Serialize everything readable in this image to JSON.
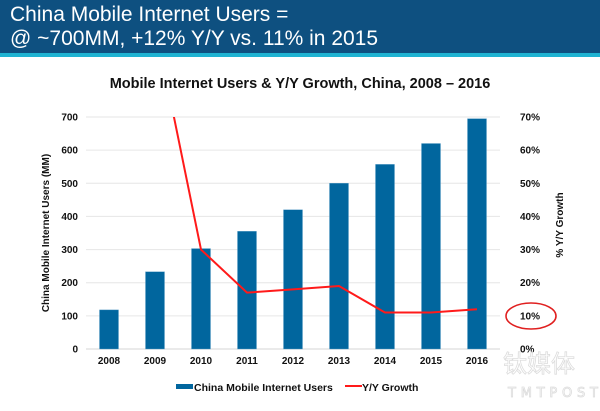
{
  "header": {
    "line1": "China Mobile Internet Users =",
    "line2": "@ ~700MM, +12% Y/Y vs. 11% in 2015"
  },
  "colors": {
    "header_bg": "#0e5080",
    "header_accent": "#1fb3d2",
    "bar": "#01669e",
    "line": "#ff1a1a",
    "annotation": "#e02020"
  },
  "watermark": {
    "cn": "钛媒体",
    "en": "TMTPOST"
  },
  "chart_data": {
    "type": "bar",
    "title": "Mobile Internet Users & Y/Y Growth, China, 2008 – 2016",
    "xlabel": "",
    "ylabel": "China Mobile Internet Users (MM)",
    "y2label": "% Y/Y Growth",
    "categories": [
      "2008",
      "2009",
      "2010",
      "2011",
      "2012",
      "2013",
      "2014",
      "2015",
      "2016"
    ],
    "ylim": [
      0,
      700
    ],
    "y_ticks": [
      "0",
      "100",
      "200",
      "300",
      "400",
      "500",
      "600",
      "700"
    ],
    "y2lim": [
      0,
      70
    ],
    "y2_ticks": [
      "0%",
      "10%",
      "20%",
      "30%",
      "40%",
      "50%",
      "60%",
      "70%"
    ],
    "grid": true,
    "legend_position": "bottom",
    "series": [
      {
        "name": "China Mobile Internet Users",
        "type": "bar",
        "axis": "left",
        "values": [
          118,
          233,
          303,
          355,
          420,
          500,
          557,
          620,
          695
        ]
      },
      {
        "name": "Y/Y Growth",
        "type": "line",
        "axis": "right",
        "unit": "%",
        "values": [
          null,
          98,
          30,
          17,
          18,
          19,
          11,
          11,
          12
        ]
      }
    ],
    "annotations": [
      {
        "type": "circle",
        "target": "10%",
        "axis": "right"
      }
    ]
  }
}
